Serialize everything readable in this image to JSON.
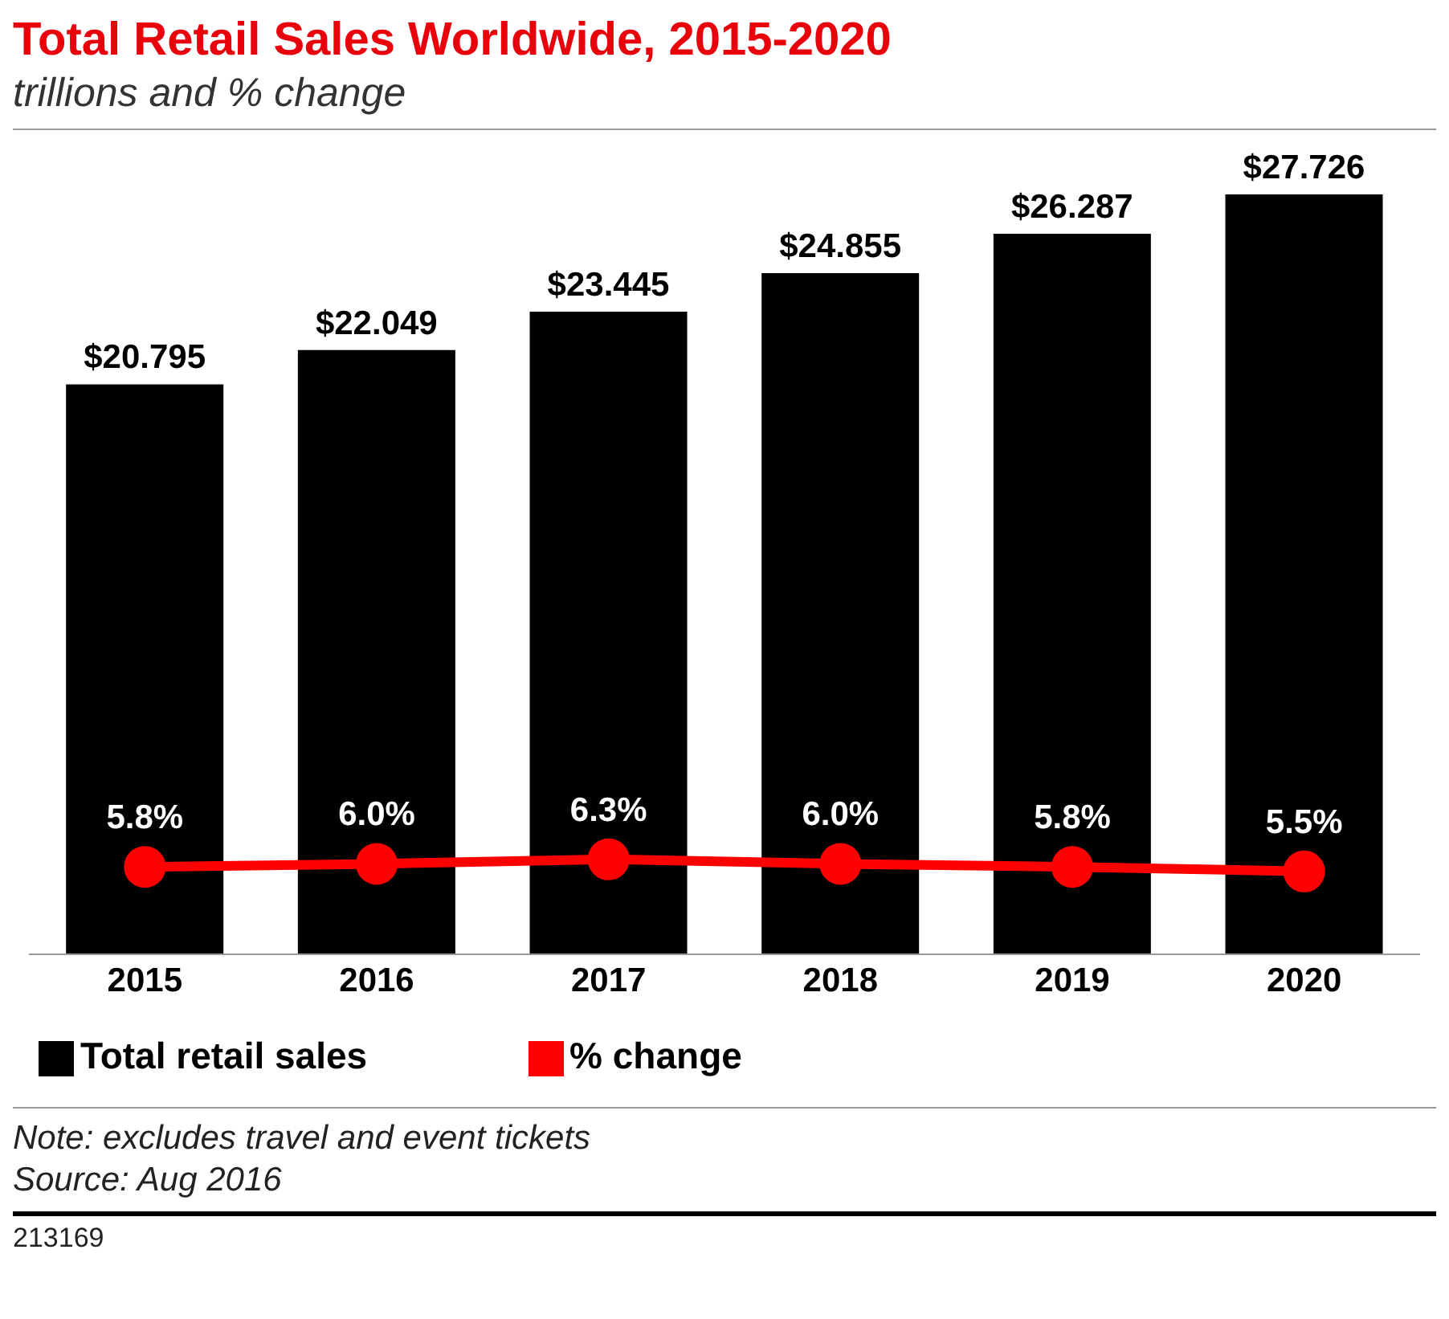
{
  "chart_data": {
    "type": "bar",
    "title": "Total Retail Sales Worldwide, 2015-2020",
    "subtitle": "trillions and % change",
    "categories": [
      "2015",
      "2016",
      "2017",
      "2018",
      "2019",
      "2020"
    ],
    "series": [
      {
        "name": "Total retail sales",
        "color": "#000000",
        "values": [
          20.795,
          22.049,
          23.445,
          24.855,
          26.287,
          27.726
        ],
        "value_labels": [
          "$20.795",
          "$22.049",
          "$23.445",
          "$24.855",
          "$26.287",
          "$27.726"
        ]
      },
      {
        "name": "% change",
        "type": "line",
        "axis": "y2",
        "color": "#ff0000",
        "values": [
          5.8,
          6.0,
          6.3,
          6.0,
          5.8,
          5.5
        ],
        "value_labels": [
          "5.8%",
          "6.0%",
          "6.3%",
          "6.0%",
          "5.8%",
          "5.5%"
        ]
      }
    ],
    "tick_labels": "x",
    "legend": "bottom left",
    "marker": "circle",
    "line_style": "solid",
    "annotations": [
      "Note: excludes travel and event tickets",
      "Source: Aug 2016",
      "213169"
    ]
  }
}
